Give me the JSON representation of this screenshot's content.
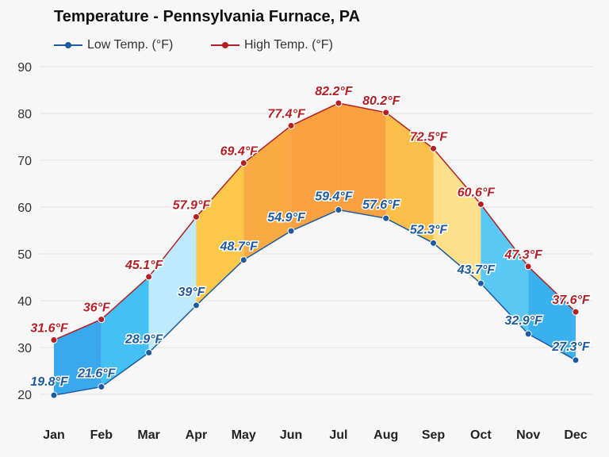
{
  "chart_data": {
    "type": "area",
    "title": "Temperature - Pennsylvania Furnace, PA",
    "categories": [
      "Jan",
      "Feb",
      "Mar",
      "Apr",
      "May",
      "Jun",
      "Jul",
      "Aug",
      "Sep",
      "Oct",
      "Nov",
      "Dec"
    ],
    "series": [
      {
        "name": "Low Temp. (°F)",
        "color": "#1d5aa0",
        "values": [
          19.8,
          21.6,
          28.9,
          39,
          48.7,
          54.9,
          59.4,
          57.6,
          52.3,
          43.7,
          32.9,
          27.3
        ],
        "labels": [
          "19.8°F",
          "21.6°F",
          "28.9°F",
          "39°F",
          "48.7°F",
          "54.9°F",
          "59.4°F",
          "57.6°F",
          "52.3°F",
          "43.7°F",
          "32.9°F",
          "27.3°F"
        ]
      },
      {
        "name": "High Temp. (°F)",
        "color": "#b21f24",
        "values": [
          31.6,
          36,
          45.1,
          57.9,
          69.4,
          77.4,
          82.2,
          80.2,
          72.5,
          60.6,
          47.3,
          37.6
        ],
        "labels": [
          "31.6°F",
          "36°F",
          "45.1°F",
          "57.9°F",
          "69.4°F",
          "77.4°F",
          "82.2°F",
          "80.2°F",
          "72.5°F",
          "60.6°F",
          "47.3°F",
          "37.6°F"
        ]
      }
    ],
    "band_colors": [
      "#3aa8ec",
      "#45c0f5",
      "#bdeafc",
      "#fbc84a",
      "#f9aa45",
      "#f9a040",
      "#f9a040",
      "#fbbf4a",
      "#fde08a",
      "#5ac8f5",
      "#3ab0ef"
    ],
    "ylim": [
      20,
      90
    ],
    "yticks": [
      "20",
      "30",
      "40",
      "50",
      "60",
      "70",
      "80",
      "90"
    ],
    "grid": true,
    "legend": "top-left"
  }
}
